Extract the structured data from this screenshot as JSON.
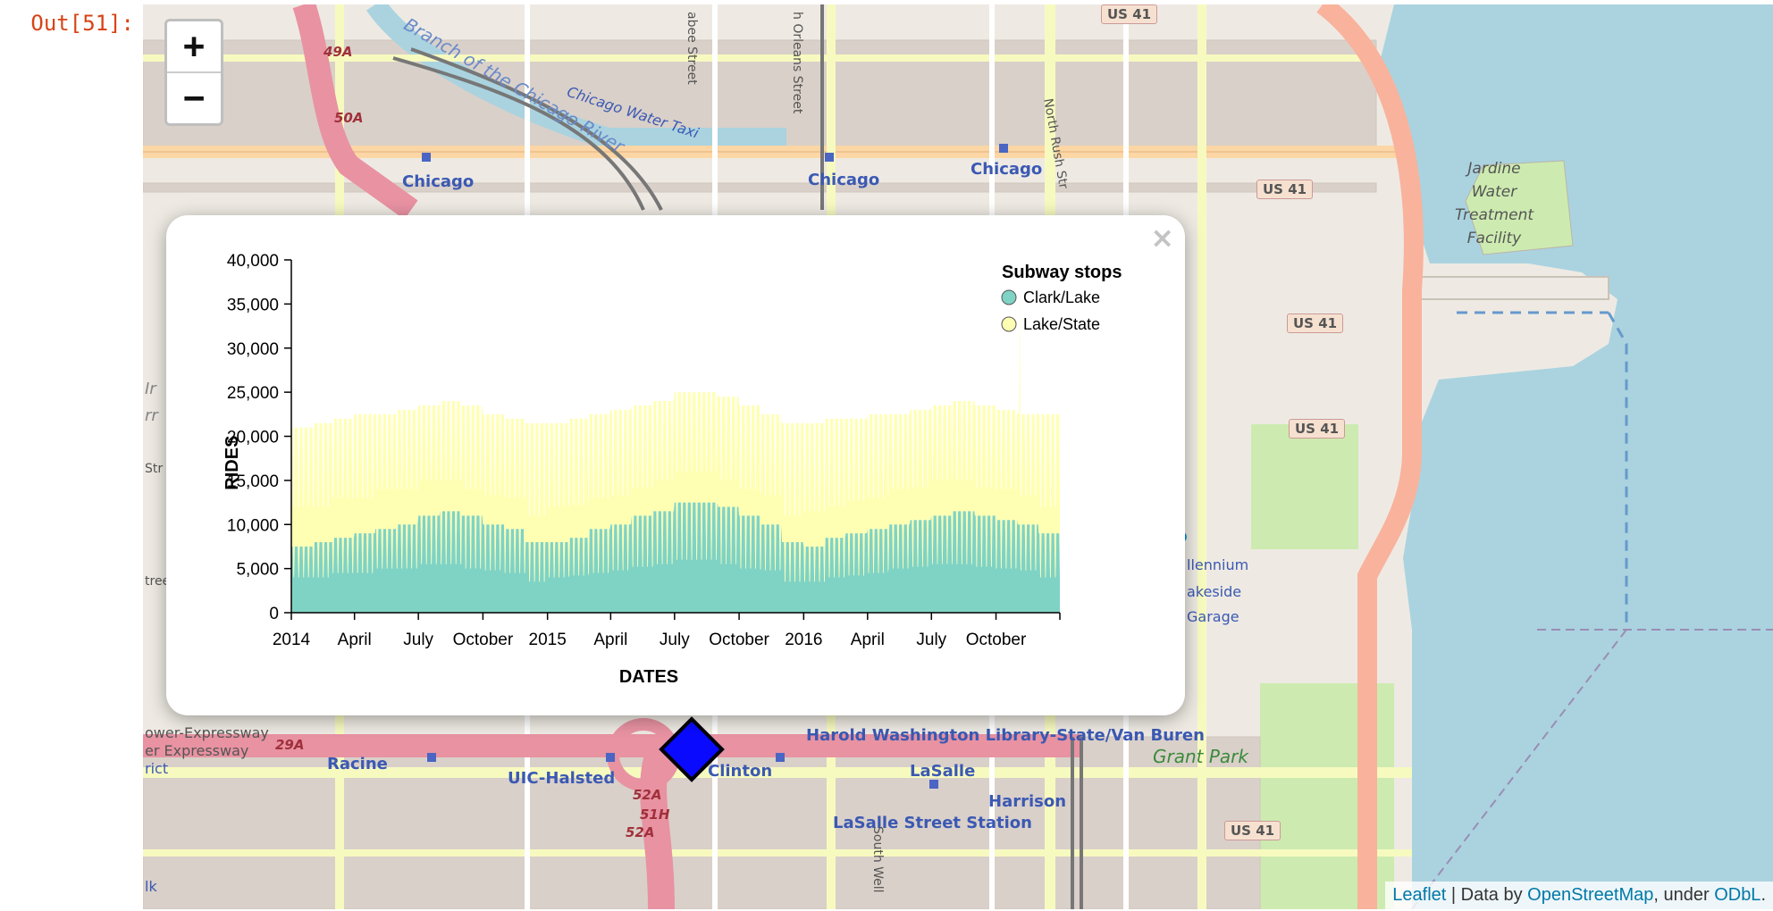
{
  "cell": {
    "prompt": "Out[51]:"
  },
  "map": {
    "zoom_in": "+",
    "zoom_out": "−",
    "labels": [
      {
        "text": "Chicago",
        "cls": "station"
      },
      {
        "text": "Chicago",
        "cls": "station"
      },
      {
        "text": "Chicago",
        "cls": "station"
      },
      {
        "text": "Clinton",
        "cls": "station"
      },
      {
        "text": "LaSalle",
        "cls": "station"
      },
      {
        "text": "Racine",
        "cls": "station"
      },
      {
        "text": "UIC-Halsted",
        "cls": "station"
      },
      {
        "text": "Harrison",
        "cls": "station"
      },
      {
        "text": "LaSalle Street Station",
        "cls": "station"
      },
      {
        "text": "Harold Washington Library-State/Van Buren",
        "cls": "station"
      },
      {
        "text": "Grant Park",
        "cls": "park"
      },
      {
        "text": "Chicago Water Taxi",
        "cls": "water"
      },
      {
        "text": "Branch of the Chicago River",
        "cls": "water"
      },
      {
        "text": "Jardine",
        "cls": "facility"
      },
      {
        "text": "Water",
        "cls": "facility"
      },
      {
        "text": "Treatment",
        "cls": "facility"
      },
      {
        "text": "Facility",
        "cls": "facility"
      },
      {
        "text": "llennium",
        "cls": "station"
      },
      {
        "text": "akeside",
        "cls": "station"
      },
      {
        "text": "Garage",
        "cls": "station"
      },
      {
        "text": "North Rush Str",
        "cls": "street"
      },
      {
        "text": "h Orleans Street",
        "cls": "street"
      },
      {
        "text": "abee Street",
        "cls": "street"
      },
      {
        "text": "South Well",
        "cls": "street"
      },
      {
        "text": "ower-Expressway",
        "cls": "street"
      },
      {
        "text": "er Expressway",
        "cls": "street"
      },
      {
        "text": "rict",
        "cls": "street"
      },
      {
        "text": "lk",
        "cls": "street"
      },
      {
        "text": "Str",
        "cls": "street"
      },
      {
        "text": "tree",
        "cls": "street"
      },
      {
        "text": "Ir",
        "cls": "street"
      },
      {
        "text": "rr",
        "cls": "street"
      }
    ],
    "shields": [
      {
        "text": "US 41"
      },
      {
        "text": "US 41"
      },
      {
        "text": "US 41"
      },
      {
        "text": "US 41"
      },
      {
        "text": "US 41"
      }
    ],
    "route_labels": [
      {
        "text": "49A"
      },
      {
        "text": "50A"
      },
      {
        "text": "29A"
      },
      {
        "text": "52A"
      },
      {
        "text": "51H"
      },
      {
        "text": "52A"
      }
    ],
    "parking_label": "P",
    "attribution": {
      "leaflet": "Leaflet",
      "sep1": " | Data by ",
      "osm": "OpenStreetMap",
      "sep2": ", under ",
      "odbl": "ODbL",
      "end": "."
    },
    "colors": {
      "water": "#aad3df",
      "land": "#eeeae3",
      "park": "#cdebb0",
      "motorway": "#e892a2",
      "trunk": "#f9b29c",
      "secondary": "#f7fabf",
      "primary": "#fcd6a4",
      "rail": "#777777"
    }
  },
  "popup": {
    "close_glyph": "×"
  },
  "chart_data": {
    "type": "area",
    "xlabel": "DATES",
    "ylabel": "RIDES",
    "ylim": [
      0,
      40000
    ],
    "yticks": [
      "0",
      "5,000",
      "10,000",
      "15,000",
      "20,000",
      "25,000",
      "30,000",
      "35,000",
      "40,000"
    ],
    "xticks": [
      "2014",
      "April",
      "July",
      "October",
      "2015",
      "April",
      "July",
      "October",
      "2016",
      "April",
      "July",
      "October"
    ],
    "xdomain": [
      "2014-01-01",
      "2016-12-31"
    ],
    "stacked": true,
    "legend": {
      "title": "Subway stops",
      "position": "top-right"
    },
    "series": [
      {
        "name": "Clark/Lake",
        "color": "#7fd3c4",
        "x": [
          "2014-01-01",
          "2014-02-01",
          "2014-03-01",
          "2014-04-01",
          "2014-05-01",
          "2014-06-01",
          "2014-07-01",
          "2014-08-01",
          "2014-09-01",
          "2014-10-01",
          "2014-11-01",
          "2014-12-01",
          "2015-01-01",
          "2015-02-01",
          "2015-03-01",
          "2015-04-01",
          "2015-05-01",
          "2015-06-01",
          "2015-07-01",
          "2015-08-01",
          "2015-09-01",
          "2015-10-01",
          "2015-11-01",
          "2015-12-01",
          "2016-01-01",
          "2016-02-01",
          "2016-03-01",
          "2016-04-01",
          "2016-05-01",
          "2016-06-01",
          "2016-07-01",
          "2016-08-01",
          "2016-09-01",
          "2016-10-01",
          "2016-11-01",
          "2016-12-01"
        ],
        "weekday": [
          7500,
          8000,
          8500,
          9000,
          9500,
          10000,
          11000,
          11500,
          11000,
          10000,
          9500,
          8000,
          8000,
          8500,
          9500,
          10000,
          11000,
          11500,
          12500,
          12500,
          12000,
          11000,
          10000,
          8000,
          7500,
          8500,
          9000,
          9500,
          10000,
          10500,
          11000,
          11500,
          11000,
          10500,
          10000,
          9000
        ],
        "weekend": [
          4000,
          4000,
          4500,
          4500,
          5000,
          5000,
          5500,
          5500,
          5000,
          4800,
          4500,
          3500,
          4000,
          4200,
          4500,
          4800,
          5200,
          5500,
          6000,
          6000,
          5500,
          5000,
          4800,
          3500,
          3500,
          4000,
          4200,
          4500,
          5000,
          5200,
          5500,
          5500,
          5200,
          5000,
          4800,
          4000
        ]
      },
      {
        "name": "Lake/State",
        "color": "#ffffb3",
        "x": [
          "2014-01-01",
          "2014-02-01",
          "2014-03-01",
          "2014-04-01",
          "2014-05-01",
          "2014-06-01",
          "2014-07-01",
          "2014-08-01",
          "2014-09-01",
          "2014-10-01",
          "2014-11-01",
          "2014-12-01",
          "2015-01-01",
          "2015-02-01",
          "2015-03-01",
          "2015-04-01",
          "2015-05-01",
          "2015-06-01",
          "2015-07-01",
          "2015-08-01",
          "2015-09-01",
          "2015-10-01",
          "2015-11-01",
          "2015-12-01",
          "2016-01-01",
          "2016-02-01",
          "2016-03-01",
          "2016-04-01",
          "2016-05-01",
          "2016-06-01",
          "2016-07-01",
          "2016-08-01",
          "2016-09-01",
          "2016-10-01",
          "2016-11-01",
          "2016-12-01"
        ],
        "weekday": [
          13500,
          13500,
          13500,
          13500,
          13000,
          13000,
          12500,
          12500,
          12500,
          12500,
          12500,
          13500,
          13500,
          13500,
          13000,
          13000,
          12500,
          12500,
          12500,
          12500,
          12500,
          12500,
          12500,
          13500,
          14000,
          13500,
          13000,
          13000,
          12500,
          12500,
          12500,
          12500,
          12500,
          12500,
          12500,
          13500
        ],
        "weekend": [
          8000,
          8000,
          8500,
          8500,
          9000,
          9000,
          9500,
          9500,
          9000,
          8500,
          8500,
          7500,
          8000,
          8000,
          8500,
          8500,
          9000,
          9500,
          10000,
          10000,
          9500,
          9000,
          8500,
          7500,
          8000,
          8000,
          8500,
          8500,
          9000,
          9000,
          9500,
          9500,
          9000,
          9000,
          8500,
          8000
        ],
        "peak": {
          "date": "2016-11-04",
          "value": 36000
        }
      }
    ]
  }
}
